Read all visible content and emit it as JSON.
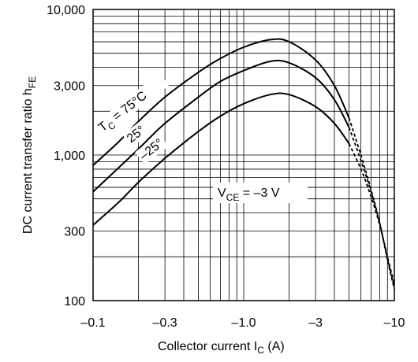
{
  "chart_data": {
    "type": "line",
    "x_scale": "log",
    "y_scale": "log",
    "xlim": [
      -0.1,
      -10
    ],
    "ylim": [
      100,
      10000
    ],
    "x_ticks": [
      {
        "value": -0.1,
        "label": "–0.1"
      },
      {
        "value": -0.3,
        "label": "–0.3"
      },
      {
        "value": -1.0,
        "label": "–1.0"
      },
      {
        "value": -3,
        "label": "–3"
      },
      {
        "value": -10,
        "label": "–10"
      }
    ],
    "y_ticks": [
      {
        "value": 100,
        "label": "100"
      },
      {
        "value": 300,
        "label": "300"
      },
      {
        "value": 1000,
        "label": "1,000"
      },
      {
        "value": 3000,
        "label": "3,000"
      },
      {
        "value": 10000,
        "label": "10,000"
      }
    ],
    "xlabel": {
      "main": "Collector current  I",
      "sub": "C",
      "unit": "  (A)"
    },
    "ylabel": {
      "main": "DC current transfer ratio  h",
      "sub": "FE"
    },
    "grid": true,
    "annotations": {
      "condition": {
        "main": "V",
        "sub": "CE",
        "rest": " = –3 V"
      },
      "series_label": {
        "main": "T",
        "sub": "C",
        "rest": " = 75°C"
      }
    },
    "series": [
      {
        "name": "75°C",
        "label_text": "T = 75°C",
        "x": [
          -0.1,
          -0.15,
          -0.2,
          -0.3,
          -0.5,
          -0.7,
          -1.0,
          -1.5,
          -2.0,
          -3.0,
          -4.0,
          -5.0,
          -6.0,
          -7.0,
          -8.0,
          -9.0,
          -10.0
        ],
        "y": [
          850,
          1250,
          1700,
          2500,
          3700,
          4600,
          5500,
          6200,
          6000,
          4500,
          3000,
          1800,
          1000,
          580,
          340,
          190,
          120
        ],
        "dash_from_x": -5.0
      },
      {
        "name": "25°C",
        "label_text": "25°",
        "x": [
          -0.1,
          -0.15,
          -0.2,
          -0.3,
          -0.5,
          -0.7,
          -1.0,
          -1.5,
          -2.0,
          -3.0,
          -4.0,
          -5.0,
          -6.0,
          -7.0,
          -8.0,
          -9.0,
          -10.0
        ],
        "y": [
          560,
          830,
          1100,
          1650,
          2500,
          3200,
          3800,
          4400,
          4300,
          3400,
          2400,
          1550,
          920,
          560,
          340,
          195,
          125
        ],
        "dash_from_x": -5.0
      },
      {
        "name": "–25°C",
        "label_text": "–25°",
        "x": [
          -0.1,
          -0.15,
          -0.2,
          -0.3,
          -0.5,
          -0.7,
          -1.0,
          -1.5,
          -2.0,
          -3.0,
          -4.0,
          -5.0,
          -6.0,
          -7.0,
          -8.0,
          -9.0,
          -10.0
        ],
        "y": [
          330,
          480,
          650,
          950,
          1450,
          1850,
          2250,
          2600,
          2600,
          2150,
          1650,
          1200,
          800,
          520,
          330,
          200,
          130
        ],
        "dash_from_x": -5.0
      }
    ]
  }
}
